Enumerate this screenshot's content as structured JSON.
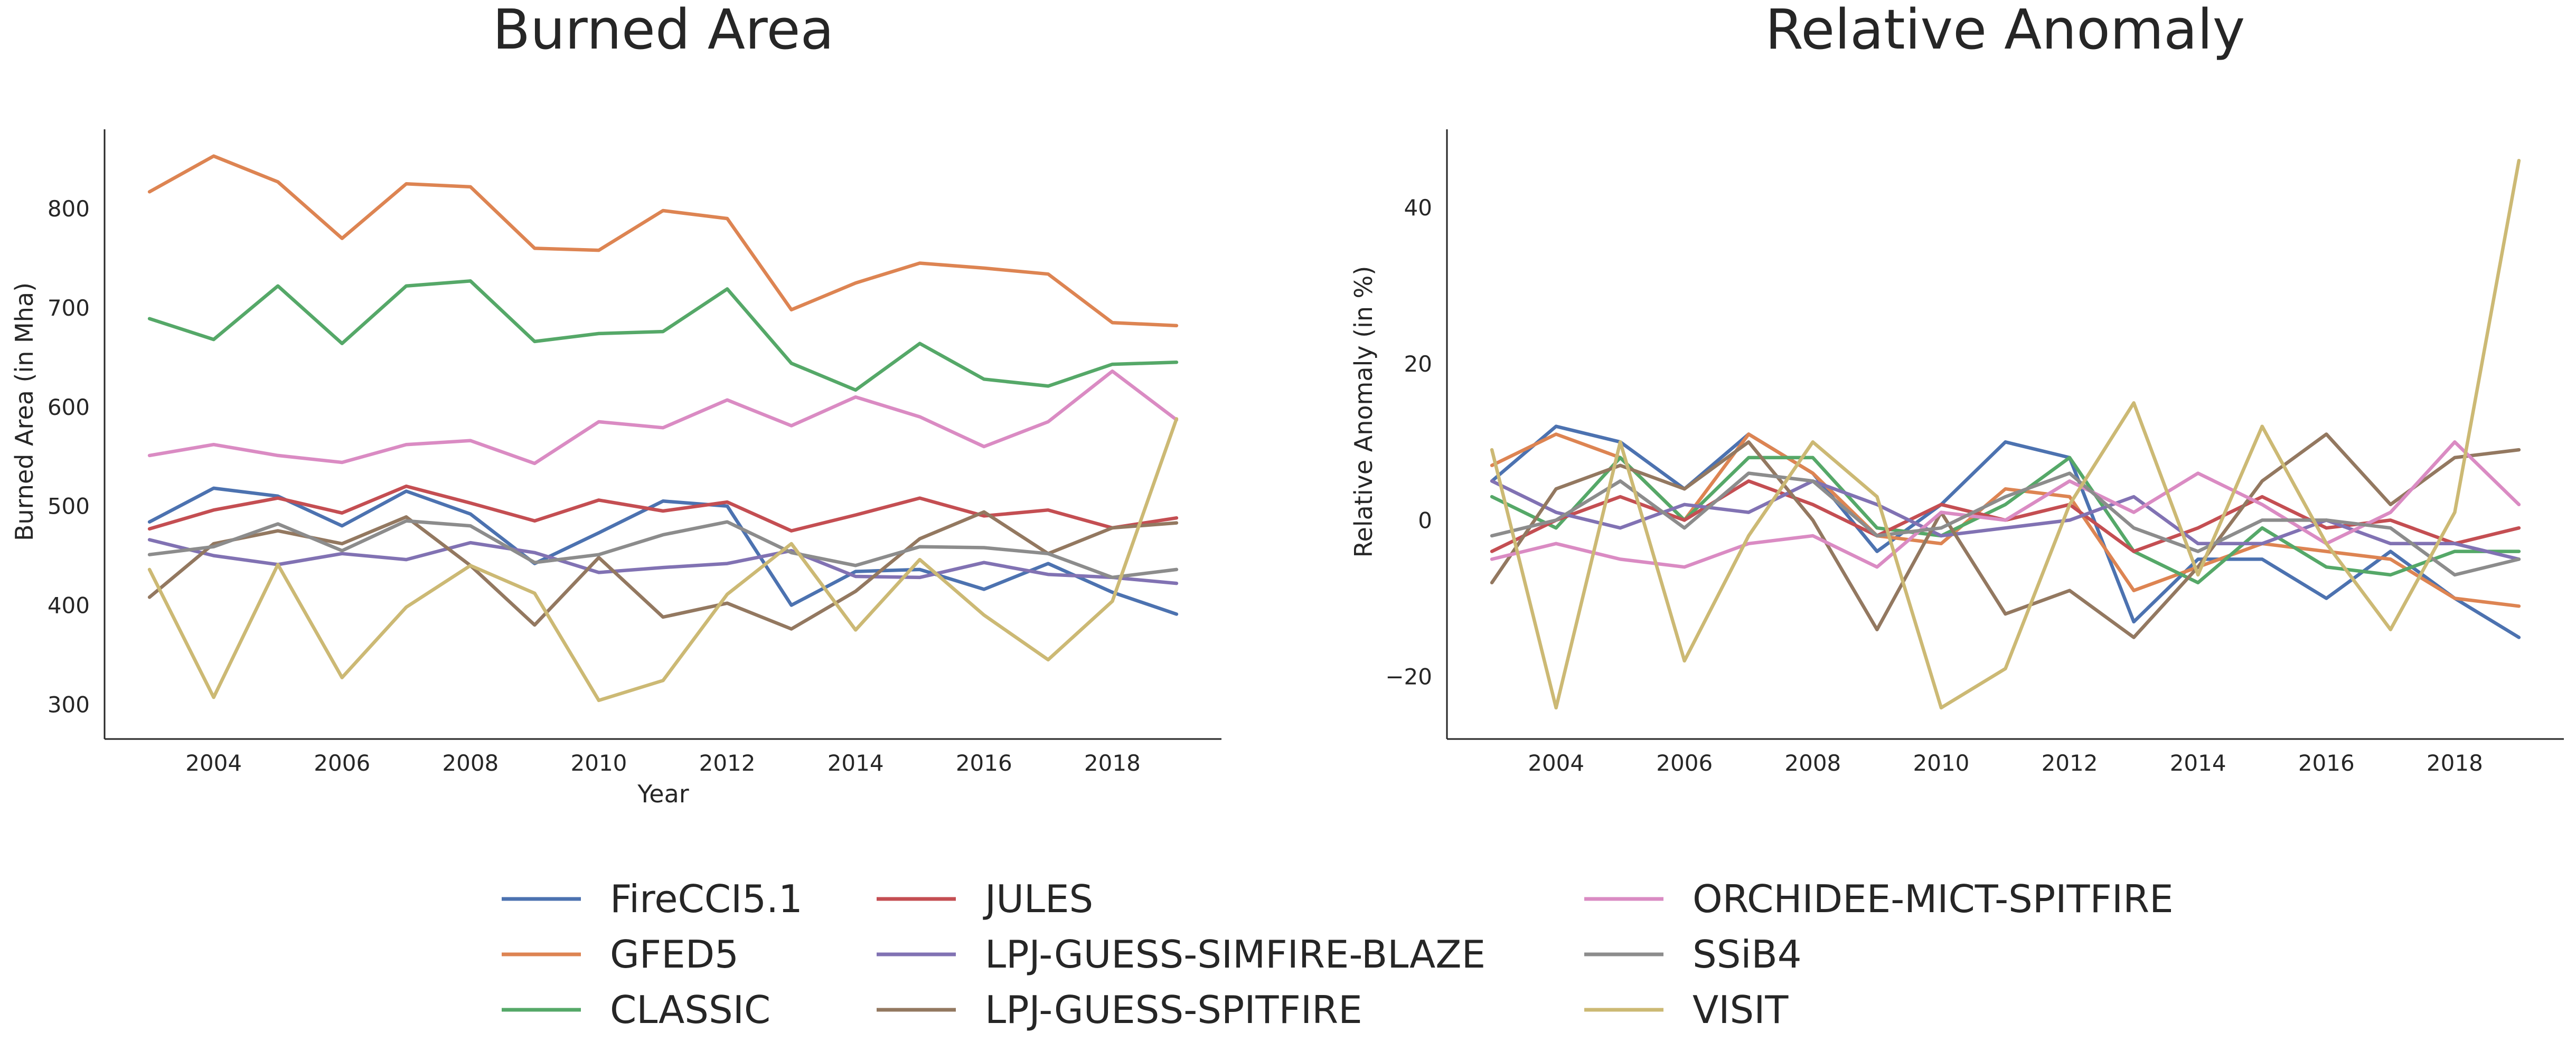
{
  "chart_data": [
    {
      "type": "line",
      "title": "Burned Area",
      "xlabel": "Year",
      "ylabel": "Burned Area (in Mha)",
      "xlim": [
        2002.3,
        2019.7
      ],
      "ylim": [
        265,
        880
      ],
      "xticks": [
        2004,
        2006,
        2008,
        2010,
        2012,
        2014,
        2016,
        2018
      ],
      "yticks": [
        300,
        400,
        500,
        600,
        700,
        800
      ],
      "ytick_labels": [
        "300",
        "400",
        "500",
        "600",
        "700",
        "800"
      ],
      "x": [
        2003,
        2004,
        2005,
        2006,
        2007,
        2008,
        2009,
        2010,
        2011,
        2012,
        2013,
        2014,
        2015,
        2016,
        2017,
        2018,
        2019
      ],
      "grid": false,
      "series": [
        {
          "name": "FireCCI5.1",
          "color": "#4c72b0",
          "values": [
            484,
            518,
            510,
            480,
            515,
            492,
            442,
            473,
            505,
            500,
            400,
            434,
            436,
            416,
            442,
            413,
            391
          ]
        },
        {
          "name": "GFED5",
          "color": "#dd8452",
          "values": [
            817,
            853,
            827,
            770,
            825,
            822,
            760,
            758,
            798,
            790,
            698,
            725,
            745,
            740,
            734,
            685,
            682
          ]
        },
        {
          "name": "CLASSIC",
          "color": "#55a868",
          "values": [
            689,
            668,
            722,
            664,
            722,
            727,
            666,
            674,
            676,
            719,
            644,
            617,
            664,
            628,
            621,
            643,
            645
          ]
        },
        {
          "name": "JULES",
          "color": "#c44e52",
          "values": [
            477,
            496,
            508,
            493,
            520,
            503,
            485,
            506,
            495,
            504,
            475,
            491,
            508,
            490,
            496,
            478,
            488
          ]
        },
        {
          "name": "LPJ-GUESS-SIMFIRE-BLAZE",
          "color": "#8172b3",
          "values": [
            466,
            450,
            441,
            452,
            446,
            463,
            453,
            433,
            438,
            442,
            455,
            429,
            428,
            443,
            431,
            428,
            422
          ]
        },
        {
          "name": "LPJ-GUESS-SPITFIRE",
          "color": "#937860",
          "values": [
            408,
            462,
            475,
            462,
            489,
            440,
            380,
            448,
            388,
            402,
            376,
            414,
            467,
            494,
            452,
            478,
            483
          ]
        },
        {
          "name": "ORCHIDEE-MICT-SPITFIRE",
          "color": "#da8bc3",
          "values": [
            551,
            562,
            551,
            544,
            562,
            566,
            543,
            585,
            579,
            607,
            581,
            610,
            590,
            560,
            585,
            636,
            587
          ]
        },
        {
          "name": "SSiB4",
          "color": "#8c8c8c",
          "values": [
            451,
            459,
            482,
            455,
            485,
            480,
            443,
            451,
            471,
            484,
            453,
            440,
            459,
            458,
            452,
            428,
            436
          ]
        },
        {
          "name": "VISIT",
          "color": "#ccb974",
          "values": [
            436,
            307,
            441,
            327,
            398,
            440,
            412,
            304,
            324,
            411,
            462,
            375,
            446,
            390,
            345,
            404,
            588
          ]
        }
      ]
    },
    {
      "type": "line",
      "title": "Relative Anomaly",
      "xlabel": "",
      "ylabel": "Relative Anomaly (in %)",
      "xlim": [
        2002.3,
        2019.7
      ],
      "ylim": [
        -28,
        50
      ],
      "xticks": [
        2004,
        2006,
        2008,
        2010,
        2012,
        2014,
        2016,
        2018
      ],
      "yticks": [
        -20,
        0,
        20,
        40
      ],
      "ytick_labels": [
        "−20",
        "0",
        "20",
        "40"
      ],
      "x": [
        2003,
        2004,
        2005,
        2006,
        2007,
        2008,
        2009,
        2010,
        2011,
        2012,
        2013,
        2014,
        2015,
        2016,
        2017,
        2018,
        2019
      ],
      "grid": false,
      "series": [
        {
          "name": "FireCCI5.1",
          "color": "#4c72b0",
          "values": [
            5,
            12,
            10,
            4,
            11,
            6,
            -4,
            2,
            10,
            8,
            -13,
            -5,
            -5,
            -10,
            -4,
            -10,
            -15
          ]
        },
        {
          "name": "GFED5",
          "color": "#dd8452",
          "values": [
            7,
            11,
            8,
            0,
            11,
            6,
            -2,
            -3,
            4,
            3,
            -9,
            -6,
            -3,
            -4,
            -5,
            -10,
            -11
          ]
        },
        {
          "name": "CLASSIC",
          "color": "#55a868",
          "values": [
            3,
            -1,
            8,
            0,
            8,
            8,
            -1,
            -2,
            2,
            8,
            -4,
            -8,
            -1,
            -6,
            -7,
            -4,
            -4
          ]
        },
        {
          "name": "JULES",
          "color": "#c44e52",
          "values": [
            -4,
            0,
            3,
            0,
            5,
            2,
            -2,
            2,
            0,
            2,
            -4,
            -1,
            3,
            -1,
            0,
            -3,
            -1
          ]
        },
        {
          "name": "LPJ-GUESS-SIMFIRE-BLAZE",
          "color": "#8172b3",
          "values": [
            5,
            1,
            -1,
            2,
            1,
            5,
            2,
            -2,
            -1,
            0,
            3,
            -3,
            -3,
            0,
            -3,
            -3,
            -5
          ]
        },
        {
          "name": "LPJ-GUESS-SPITFIRE",
          "color": "#937860",
          "values": [
            -8,
            4,
            7,
            4,
            10,
            0,
            -14,
            1,
            -12,
            -9,
            -15,
            -6,
            5,
            11,
            2,
            8,
            9
          ]
        },
        {
          "name": "ORCHIDEE-MICT-SPITFIRE",
          "color": "#da8bc3",
          "values": [
            -5,
            -3,
            -5,
            -6,
            -3,
            -2,
            -6,
            1,
            0,
            5,
            1,
            6,
            2,
            -3,
            1,
            10,
            2
          ]
        },
        {
          "name": "SSiB4",
          "color": "#8c8c8c",
          "values": [
            -2,
            0,
            5,
            -1,
            6,
            5,
            -2,
            -1,
            3,
            6,
            -1,
            -4,
            0,
            0,
            -1,
            -7,
            -5
          ]
        },
        {
          "name": "VISIT",
          "color": "#ccb974",
          "values": [
            9,
            -24,
            10,
            -18,
            -2,
            10,
            3,
            -24,
            -19,
            2,
            15,
            -7,
            12,
            -3,
            -14,
            1,
            46
          ]
        }
      ]
    }
  ],
  "legend": {
    "placement": "bottom-center",
    "columns": 3
  }
}
